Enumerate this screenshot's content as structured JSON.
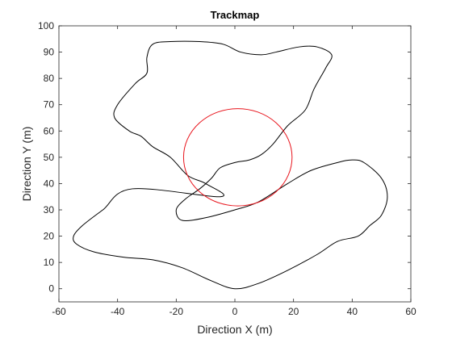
{
  "chart_data": {
    "type": "line",
    "title": "Trackmap",
    "xlabel": "Direction X (m)",
    "ylabel": "Direction Y (m)",
    "xlim": [
      -60,
      60
    ],
    "ylim": [
      -5,
      100
    ],
    "xticks": [
      -60,
      -40,
      -20,
      0,
      20,
      40,
      60
    ],
    "yticks": [
      0,
      10,
      20,
      30,
      40,
      50,
      60,
      70,
      80,
      90,
      100
    ],
    "grid": false,
    "box": true,
    "series": [
      {
        "color": "#000000",
        "closed": true,
        "x": [
          0,
          8,
          18,
          28,
          35,
          42,
          46,
          50,
          52,
          50,
          44,
          40,
          35,
          26,
          18,
          8,
          0,
          -10,
          -18,
          -20,
          -17,
          -12,
          -8,
          -5,
          0,
          5,
          9,
          13,
          18,
          24,
          27,
          31,
          33,
          28,
          22,
          14,
          9,
          2,
          -4,
          -12,
          -22,
          -28,
          -30,
          -30,
          -34,
          -40,
          -41,
          -36,
          -32,
          -28,
          -22,
          -16,
          -10,
          -5,
          -35,
          -45,
          -52,
          -55,
          -54,
          -48,
          -38,
          -28,
          -18,
          -8
        ],
        "y": [
          0,
          2,
          7,
          13,
          18,
          20,
          24,
          28,
          35,
          42,
          48,
          49,
          48,
          45,
          40,
          33,
          30,
          27,
          26,
          30,
          34,
          38,
          42,
          46,
          48,
          49,
          51,
          55,
          62,
          68,
          76,
          84,
          89,
          92,
          92,
          90,
          89,
          90,
          93,
          94,
          94,
          93,
          88,
          82,
          78,
          70,
          65,
          60,
          58,
          54,
          50,
          43,
          40,
          35,
          38,
          30,
          24,
          20,
          17,
          14,
          12,
          11,
          8,
          3
        ],
        "note": ""
      },
      {
        "color": "#e8141c",
        "closed": true,
        "circle": {
          "cx": 1,
          "cy": 50,
          "r": 18.5
        },
        "x": [],
        "y": []
      }
    ]
  }
}
